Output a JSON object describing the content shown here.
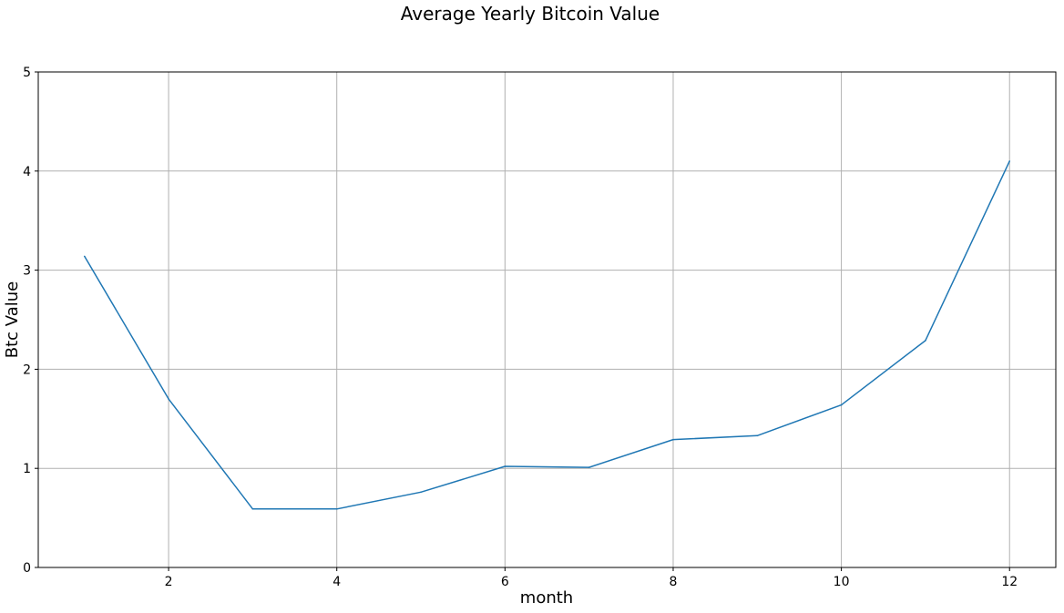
{
  "chart_data": {
    "type": "line",
    "title": "Average Yearly Bitcoin Value",
    "xlabel": "month",
    "ylabel": "Btc Value",
    "xlim": [
      0.45,
      12.55
    ],
    "ylim": [
      0,
      5
    ],
    "x_ticks": [
      2,
      4,
      6,
      8,
      10,
      12
    ],
    "y_ticks": [
      0,
      1,
      2,
      3,
      4,
      5
    ],
    "grid": true,
    "series": [
      {
        "name": "Btc Value",
        "color": "#1f77b4",
        "x": [
          1,
          2,
          3,
          4,
          5,
          6,
          7,
          8,
          9,
          10,
          11,
          12
        ],
        "values": [
          3.14,
          1.7,
          0.59,
          0.59,
          0.76,
          1.02,
          1.01,
          1.29,
          1.33,
          1.64,
          2.29,
          4.1
        ]
      }
    ]
  }
}
